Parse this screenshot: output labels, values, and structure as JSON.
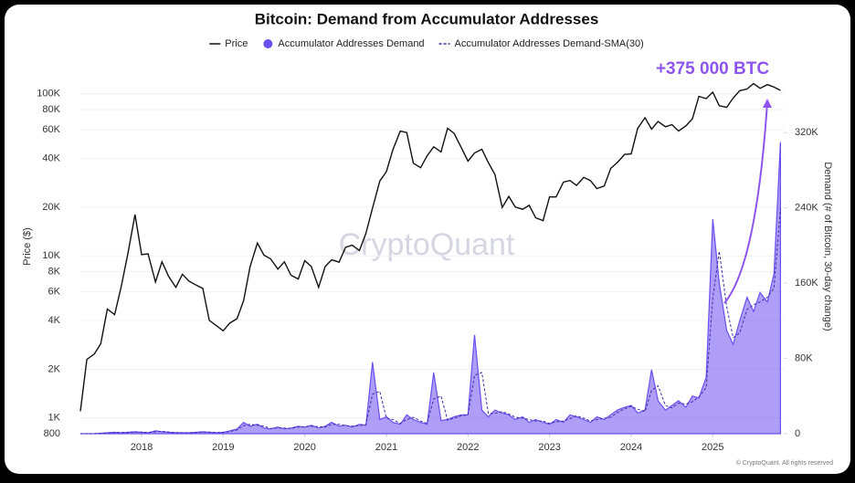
{
  "chart_data": {
    "type": "line",
    "title": "Bitcoin: Demand from Accumulator Addresses",
    "y_label": "Price ($)",
    "y2_label": "Demand (# of Bitcoin, 30-day change)",
    "annotation": "+375 000 BTC",
    "watermark": "CryptoQuant",
    "footer": "© CryptoQuant. All rights reserved",
    "yscale": "log",
    "grid": true,
    "x": [
      2017.25,
      2017.33,
      2017.42,
      2017.5,
      2017.58,
      2017.67,
      2017.75,
      2017.83,
      2017.92,
      2018,
      2018.08,
      2018.17,
      2018.25,
      2018.33,
      2018.42,
      2018.5,
      2018.58,
      2018.67,
      2018.75,
      2018.83,
      2018.92,
      2019,
      2019.08,
      2019.17,
      2019.25,
      2019.33,
      2019.42,
      2019.5,
      2019.58,
      2019.67,
      2019.75,
      2019.83,
      2019.92,
      2020,
      2020.08,
      2020.17,
      2020.25,
      2020.33,
      2020.42,
      2020.5,
      2020.58,
      2020.67,
      2020.75,
      2020.83,
      2020.92,
      2021,
      2021.08,
      2021.17,
      2021.25,
      2021.33,
      2021.42,
      2021.5,
      2021.58,
      2021.67,
      2021.75,
      2021.83,
      2021.92,
      2022,
      2022.08,
      2022.17,
      2022.25,
      2022.33,
      2022.42,
      2022.5,
      2022.58,
      2022.67,
      2022.75,
      2022.83,
      2022.92,
      2023,
      2023.08,
      2023.17,
      2023.25,
      2023.33,
      2023.42,
      2023.5,
      2023.58,
      2023.67,
      2023.75,
      2023.83,
      2023.92,
      2024,
      2024.08,
      2024.17,
      2024.25,
      2024.33,
      2024.42,
      2024.5,
      2024.58,
      2024.67,
      2024.75,
      2024.83,
      2024.92,
      2025,
      2025.08,
      2025.17,
      2025.25,
      2025.33,
      2025.42,
      2025.5,
      2025.58,
      2025.67,
      2025.75,
      2025.83
    ],
    "series": [
      {
        "name": "Price",
        "color": "#111111",
        "style": "line",
        "values": [
          1100,
          2300,
          2480,
          2870,
          4700,
          4340,
          6470,
          10200,
          18000,
          10200,
          10300,
          6900,
          9200,
          7500,
          6400,
          7700,
          7000,
          6600,
          6300,
          4000,
          3700,
          3450,
          3850,
          4100,
          5300,
          8600,
          12000,
          10100,
          9600,
          8300,
          9200,
          7600,
          7200,
          9350,
          8600,
          6400,
          8600,
          9450,
          9150,
          11300,
          11650,
          10800,
          13800,
          19700,
          29000,
          33100,
          45200,
          58900,
          57700,
          37300,
          35000,
          41500,
          47100,
          43800,
          61300,
          57000,
          46300,
          38500,
          43200,
          45500,
          37700,
          31800,
          19900,
          23300,
          20000,
          19400,
          20500,
          17200,
          16500,
          23100,
          23100,
          28500,
          29200,
          27200,
          30500,
          29200,
          26000,
          27000,
          34700,
          37700,
          42300,
          42600,
          61200,
          71300,
          60600,
          67500,
          62700,
          64600,
          59000,
          63300,
          70200,
          96400,
          93400,
          102400,
          84400,
          82500,
          94200,
          104600,
          107100,
          115700,
          108200,
          114000,
          110000,
          105000
        ]
      },
      {
        "name": "Accumulator Addresses Demand",
        "color": "#6b4ff0",
        "style": "area",
        "axis": "y2",
        "values": [
          0,
          0,
          0,
          500,
          1000,
          1500,
          1000,
          1500,
          2000,
          1500,
          1000,
          3000,
          2000,
          1500,
          1000,
          1000,
          1000,
          1500,
          2000,
          1500,
          1000,
          1500,
          3000,
          5000,
          12000,
          8000,
          10000,
          6000,
          5000,
          7000,
          5000,
          6000,
          8000,
          7000,
          9000,
          6000,
          8000,
          12000,
          8000,
          9000,
          7000,
          10000,
          9000,
          76000,
          15000,
          18000,
          12000,
          10000,
          20000,
          15000,
          12000,
          10000,
          65000,
          14000,
          15000,
          18000,
          20000,
          20000,
          105000,
          25000,
          18000,
          25000,
          22000,
          20000,
          15000,
          18000,
          12000,
          15000,
          12000,
          10000,
          15000,
          12000,
          20000,
          18000,
          15000,
          12000,
          18000,
          15000,
          20000,
          25000,
          28000,
          30000,
          22000,
          25000,
          68000,
          35000,
          25000,
          30000,
          35000,
          28000,
          40000,
          38000,
          60000,
          228000,
          160000,
          110000,
          95000,
          120000,
          145000,
          130000,
          150000,
          140000,
          170000,
          310000
        ]
      },
      {
        "name": "Accumulator Addresses Demand-SMA(30)",
        "color": "#3f2fa8",
        "style": "dashed",
        "axis": "y2",
        "values": [
          0,
          0,
          0,
          250,
          750,
          1250,
          1250,
          1250,
          1750,
          1750,
          1250,
          2000,
          2500,
          1750,
          1250,
          1000,
          1000,
          1250,
          1750,
          1750,
          1250,
          1250,
          2250,
          4000,
          8500,
          10000,
          9000,
          8000,
          5500,
          6000,
          6000,
          5500,
          7000,
          7500,
          8000,
          7500,
          7000,
          10000,
          10000,
          8500,
          8000,
          8500,
          9500,
          42000,
          45000,
          16500,
          15000,
          11000,
          15000,
          17500,
          13500,
          11000,
          37000,
          40000,
          14500,
          16500,
          19000,
          20000,
          62000,
          65000,
          21500,
          21500,
          23500,
          21000,
          17500,
          16500,
          15000,
          13500,
          13500,
          11000,
          12500,
          13500,
          16000,
          19000,
          16500,
          13500,
          15000,
          16500,
          17500,
          22500,
          26500,
          29000,
          26000,
          23500,
          46000,
          51000,
          30000,
          27500,
          32500,
          31500,
          34000,
          39000,
          49000,
          144000,
          194000,
          135000,
          102000,
          107000,
          132000,
          137000,
          140000,
          145000,
          155000,
          240000
        ]
      }
    ],
    "xlim": [
      2017.25,
      2025.87
    ],
    "xticks": [
      2018,
      2019,
      2020,
      2021,
      2022,
      2023,
      2024,
      2025
    ],
    "ylim": [
      800,
      157000
    ],
    "yticks": [
      800,
      {
        "value": 1000,
        "label": "1K"
      },
      {
        "value": 2000,
        "label": "2K"
      },
      {
        "value": 4000,
        "label": "4K"
      },
      {
        "value": 6000,
        "label": "6K"
      },
      {
        "value": 8000,
        "label": "8K"
      },
      {
        "value": 10000,
        "label": "10K"
      },
      {
        "value": 20000,
        "label": "20K"
      },
      {
        "value": 40000,
        "label": "40K"
      },
      {
        "value": 60000,
        "label": "60K"
      },
      {
        "value": 80000,
        "label": "80K"
      },
      {
        "value": 100000,
        "label": "100K"
      }
    ],
    "y2lim": [
      0,
      395000
    ],
    "y2ticks": [
      0,
      {
        "value": 80000,
        "label": "80K"
      },
      {
        "value": 160000,
        "label": "160K"
      },
      {
        "value": 240000,
        "label": "240K"
      },
      {
        "value": 320000,
        "label": "320K"
      }
    ]
  }
}
